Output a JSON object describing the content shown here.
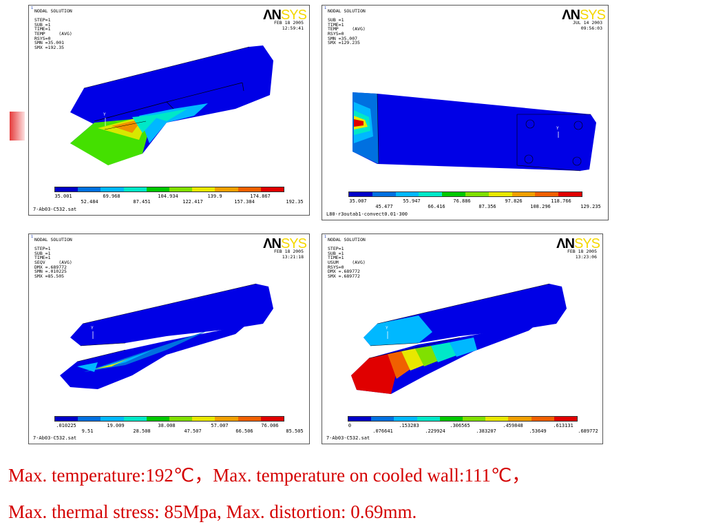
{
  "panels": [
    {
      "pnum": "1",
      "header": "NODAL SOLUTION\n\nSTEP=1\nSUB =1\nTIME=1\nTEMP     (AVG)\nRSYS=0\nSMN =35.001\nSMX =192.35",
      "date": "FEB 18 2005\n12:59:41",
      "legend_top": [
        "35.001",
        "69.968",
        "104.934",
        "139.9",
        "174.867"
      ],
      "legend_bottom": [
        "52.484",
        "87.451",
        "122.417",
        "157.384",
        "192.35"
      ],
      "footer": "7-Ab03-C532.sat"
    },
    {
      "pnum": "1",
      "header": "NODAL SOLUTION\n\nSUB =1\nTIME=1\nTEMP     (AVG)\nRSYS=0\nSMN =35.007\nSMX =129.235",
      "date": "JUL 14 2003\n09:56:03",
      "legend_top": [
        "35.007",
        "55.947",
        "76.886",
        "97.826",
        "118.766"
      ],
      "legend_bottom": [
        "45.477",
        "66.416",
        "87.356",
        "108.296",
        "129.235"
      ],
      "footer": "L80-r3outab1-convect0.01-300"
    },
    {
      "pnum": "1",
      "header": "NODAL SOLUTION\n\nSTEP=1\nSUB =1\nTIME=1\nSEQV     (AVG)\nDMX =.689772\nSMN =.010225\nSMX =85.505",
      "date": "FEB 18 2005\n13:21:18",
      "legend_top": [
        ".010225",
        "19.009",
        "38.008",
        "57.007",
        "76.006"
      ],
      "legend_bottom": [
        "9.51",
        "28.508",
        "47.507",
        "66.506",
        "85.505"
      ],
      "footer": "7-Ab03-C532.sat"
    },
    {
      "pnum": "1",
      "header": "NODAL SOLUTION\n\nSTEP=1\nSUB =1\nTIME=1\nUSUM     (AVG)\nRSYS=0\nDMX =.689772\nSMX =.689772",
      "date": "FEB 18 2005\n13:23:06",
      "legend_top": [
        "0",
        ".153283",
        ".306565",
        ".459848",
        ".613131"
      ],
      "legend_bottom": [
        ".076641",
        ".229924",
        ".383207",
        ".53649",
        ".689772"
      ],
      "footer": "7-Ab03-C532.sat"
    }
  ],
  "logo": {
    "part1": "ΛN",
    "part2": "SYS"
  },
  "colorscale": [
    "#0000c8",
    "#0070e0",
    "#00b8ff",
    "#00e8c8",
    "#00c800",
    "#80e000",
    "#e8e800",
    "#f0a000",
    "#f06000",
    "#e00000"
  ],
  "caption": {
    "line1": "Max. temperature:192℃，Max. temperature on cooled wall:111℃，",
    "line2": "Max. thermal stress: 85Mpa, Max. distortion: 0.69mm."
  }
}
